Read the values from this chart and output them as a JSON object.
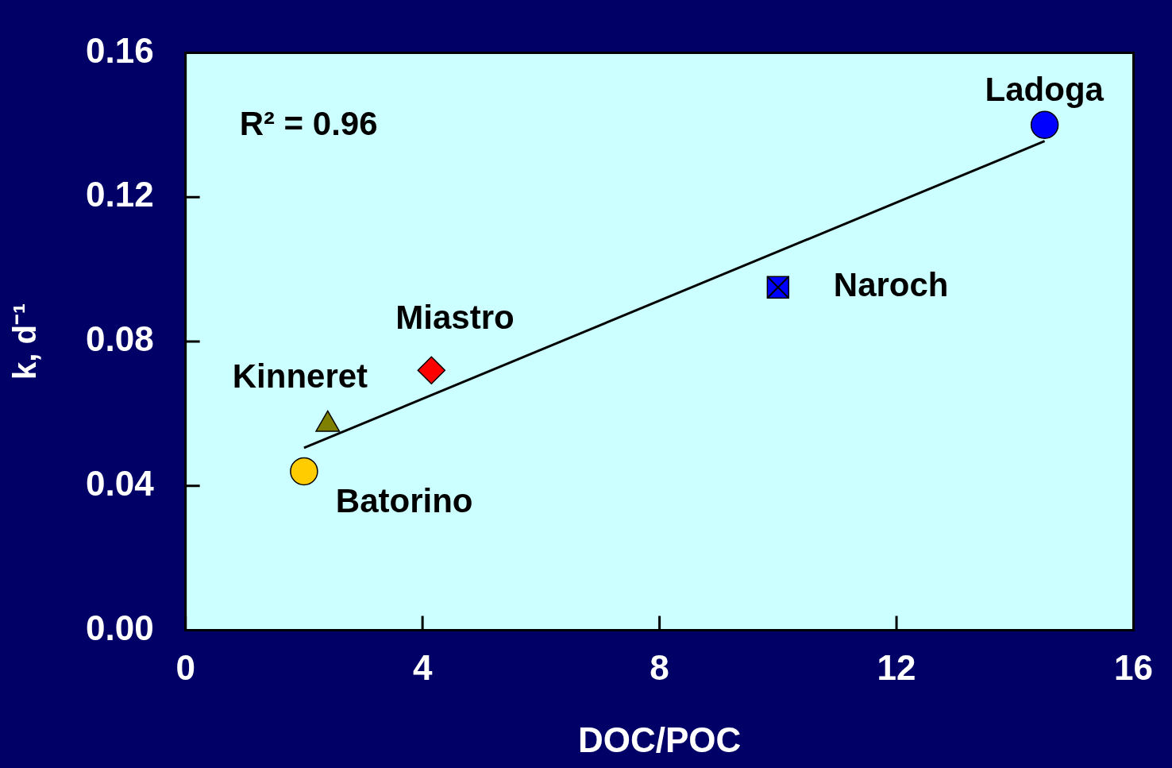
{
  "chart_data": {
    "type": "scatter",
    "xlabel": "DOC/POC",
    "ylabel": "k, d⁻¹",
    "annotations": [
      "R² = 0.96"
    ],
    "xlim": [
      0,
      16
    ],
    "xticks": [
      0,
      4,
      8,
      12,
      16
    ],
    "ylim": [
      0,
      0.16
    ],
    "yticks": [
      {
        "value": 0,
        "label": "0.00"
      },
      {
        "value": 0.04,
        "label": "0.04"
      },
      {
        "value": 0.08,
        "label": "0.08"
      },
      {
        "value": 0.12,
        "label": "0.12"
      },
      {
        "value": 0.16,
        "label": "0.16"
      }
    ],
    "grid": false,
    "legend": false,
    "series": [
      {
        "name": "Batorino",
        "marker": "circle",
        "color": "#ffcc00",
        "x": [
          2.0
        ],
        "values": [
          0.044
        ]
      },
      {
        "name": "Kinneret",
        "marker": "triangle",
        "color": "#808000",
        "x": [
          2.4
        ],
        "values": [
          0.057
        ]
      },
      {
        "name": "Miastro",
        "marker": "diamond",
        "color": "#ff0000",
        "x": [
          4.15
        ],
        "values": [
          0.072
        ]
      },
      {
        "name": "Naroch",
        "marker": "square",
        "color": "#0000ff",
        "x": [
          10.0
        ],
        "values": [
          0.095
        ]
      },
      {
        "name": "Ladoga",
        "marker": "circle",
        "color": "#0000ff",
        "x": [
          14.5
        ],
        "values": [
          0.14
        ]
      },
      {
        "type": "line",
        "color": "#000000",
        "marker": "none",
        "line_style": "solid",
        "x": [
          2.0,
          14.5
        ],
        "values": [
          0.0505,
          0.1355
        ]
      }
    ]
  }
}
